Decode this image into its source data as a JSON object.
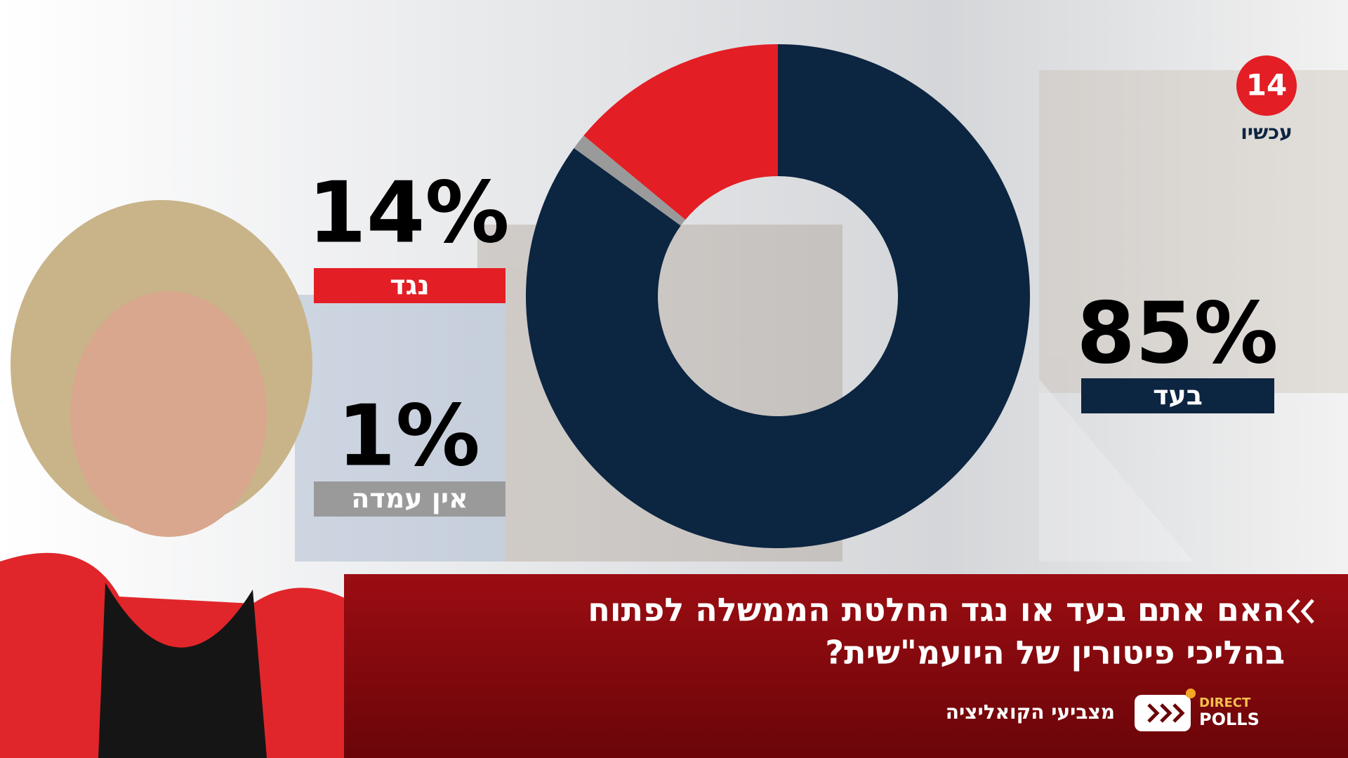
{
  "logo": {
    "number": "14",
    "name": "עכשיו"
  },
  "chart_data": {
    "type": "pie",
    "categories": [
      "בעד",
      "אין עמדה",
      "נגד"
    ],
    "values": [
      85,
      1,
      14
    ],
    "value_labels": [
      "85%",
      "1%",
      "14%"
    ],
    "colors": [
      "#0c2541",
      "#9a9a9a",
      "#e31e25"
    ]
  },
  "question": {
    "lines": [
      "האם אתם בעד או נגד החלטת הממשלה לפתוח",
      "בהליכי פיטורין של היועמ\"שית?"
    ]
  },
  "footer": {
    "audience": "מצביעי הקואליציה",
    "brand_top": "DIRECT",
    "brand_bottom": "POLLS"
  }
}
